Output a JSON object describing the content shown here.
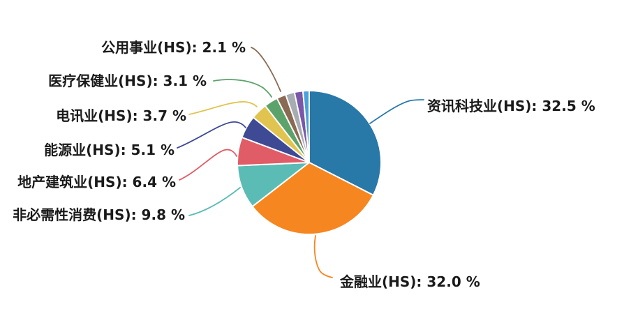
{
  "figure": {
    "background_color": "#ffffff",
    "label_text_color": "#1a1a1a"
  },
  "chart_data": {
    "type": "pie",
    "title": "",
    "start_angle_deg_from_top": 0,
    "direction": "clockwise",
    "legend_position": "none",
    "labels_style": "callout-leader-lines",
    "slices": [
      {
        "id": "it",
        "label": "资讯科技业(HS)",
        "value": 32.5,
        "display": "资讯科技业(HS): 32.5 %",
        "color": "#2878A8",
        "labeled": true
      },
      {
        "id": "fin",
        "label": "金融业(HS)",
        "value": 32.0,
        "display": "金融业(HS): 32.0 %",
        "color": "#F6861F",
        "labeled": true
      },
      {
        "id": "cd",
        "label": "非必需性消费(HS)",
        "value": 9.8,
        "display": "非必需性消费(HS): 9.8 %",
        "color": "#5BBCB6",
        "labeled": true
      },
      {
        "id": "prop",
        "label": "地产建筑业(HS)",
        "value": 6.4,
        "display": "地产建筑业(HS): 6.4 %",
        "color": "#E05C66",
        "labeled": true
      },
      {
        "id": "energy",
        "label": "能源业(HS)",
        "value": 5.1,
        "display": "能源业(HS): 5.1 %",
        "color": "#3F4A94",
        "labeled": true
      },
      {
        "id": "telecom",
        "label": "电讯业(HS)",
        "value": 3.7,
        "display": "电讯业(HS): 3.7 %",
        "color": "#E0C44F",
        "labeled": true
      },
      {
        "id": "health",
        "label": "医疗保健业(HS)",
        "value": 3.1,
        "display": "医疗保健业(HS): 3.1 %",
        "color": "#5BA36B",
        "labeled": true
      },
      {
        "id": "util",
        "label": "公用事业(HS)",
        "value": 2.1,
        "display": "公用事业(HS): 2.1 %",
        "color": "#8A6A52",
        "labeled": true
      },
      {
        "id": "other1",
        "label": "",
        "value": 2.0,
        "display": "",
        "color": "#A6ACB2",
        "labeled": false,
        "estimated": true
      },
      {
        "id": "other2",
        "label": "",
        "value": 1.9,
        "display": "",
        "color": "#7A57A8",
        "labeled": false,
        "estimated": true
      },
      {
        "id": "other3",
        "label": "",
        "value": 1.4,
        "display": "",
        "color": "#4AA2D9",
        "labeled": false,
        "estimated": true
      }
    ]
  }
}
